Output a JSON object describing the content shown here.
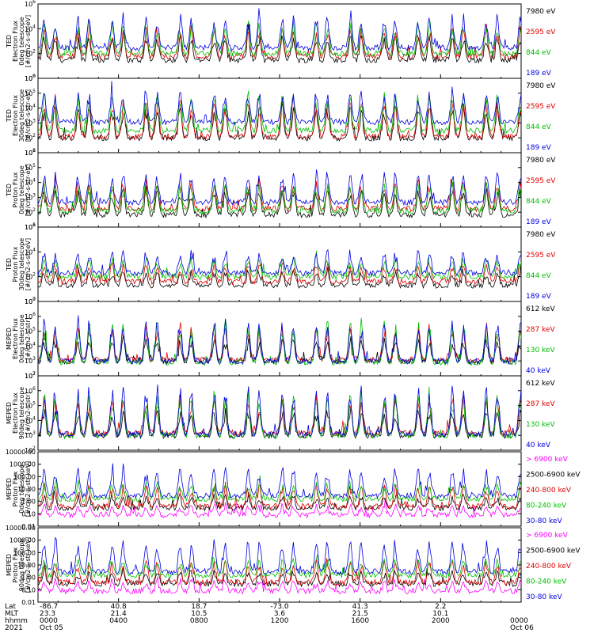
{
  "chart_data": [
    {
      "type": "line",
      "ylabel_lines": [
        "TED",
        "Electron Flux",
        "0deg telescope",
        "[#/cm2-s-str-eV]"
      ],
      "yscale": "log",
      "ylim": [
        1,
        1000000
      ],
      "y_tick_labels": [
        "10^0",
        "10^2",
        "10^4",
        "10^6"
      ],
      "series": [
        {
          "name": "7980 eV",
          "color": "#000000",
          "baseline": 30,
          "peak": 3000
        },
        {
          "name": "2595 eV",
          "color": "#e00000",
          "baseline": 60,
          "peak": 10000
        },
        {
          "name": "844 eV",
          "color": "#00c000",
          "baseline": 100,
          "peak": 30000
        },
        {
          "name": "189 eV",
          "color": "#0000e0",
          "baseline": 300,
          "peak": 100000
        }
      ]
    },
    {
      "type": "line",
      "ylabel_lines": [
        "TED",
        "Electron Flux",
        "30deg telescope",
        "[#/cm2-s-str-eV]"
      ],
      "yscale": "log",
      "ylim": [
        1,
        1000000
      ],
      "y_tick_labels": [
        "10^1",
        "10^2",
        "10^3",
        "10^4",
        "10^5",
        "10^6"
      ],
      "series": [
        {
          "name": "7980 eV",
          "color": "#000000",
          "baseline": 15,
          "peak": 5000
        },
        {
          "name": "2595 eV",
          "color": "#e00000",
          "baseline": 20,
          "peak": 20000
        },
        {
          "name": "844 eV",
          "color": "#00c000",
          "baseline": 60,
          "peak": 50000
        },
        {
          "name": "189 eV",
          "color": "#0000e0",
          "baseline": 300,
          "peak": 100000
        }
      ]
    },
    {
      "type": "line",
      "ylabel_lines": [
        "TED",
        "Proton Flux",
        "0deg telescope",
        "[#/cm2-s-str-eV]"
      ],
      "yscale": "log",
      "ylim": [
        1,
        1000000
      ],
      "y_tick_labels": [
        "10^1",
        "10^2",
        "10^3",
        "10^4",
        "10^5",
        "10^6"
      ],
      "series": [
        {
          "name": "7980 eV",
          "color": "#000000",
          "baseline": 10,
          "peak": 1000
        },
        {
          "name": "2595 eV",
          "color": "#e00000",
          "baseline": 30,
          "peak": 5000
        },
        {
          "name": "844 eV",
          "color": "#00c000",
          "baseline": 20,
          "peak": 3000
        },
        {
          "name": "189 eV",
          "color": "#0000e0",
          "baseline": 100,
          "peak": 30000
        }
      ]
    },
    {
      "type": "line",
      "ylabel_lines": [
        "TED",
        "Proton Flux",
        "30deg telescope",
        "[#/cm2-s-str-eV]"
      ],
      "yscale": "log",
      "ylim": [
        1,
        1000000
      ],
      "y_tick_labels": [
        "10^0",
        "10^2",
        "10^4",
        "10^6"
      ],
      "series": [
        {
          "name": "7980 eV",
          "color": "#000000",
          "baseline": 20,
          "peak": 300
        },
        {
          "name": "2595 eV",
          "color": "#e00000",
          "baseline": 40,
          "peak": 1000
        },
        {
          "name": "844 eV",
          "color": "#00c000",
          "baseline": 100,
          "peak": 3000
        },
        {
          "name": "189 eV",
          "color": "#0000e0",
          "baseline": 200,
          "peak": 10000
        }
      ]
    },
    {
      "type": "line",
      "ylabel_lines": [
        "MEPED",
        "Electron Flux",
        "0deg telescope",
        "[#/cm2-s-str]"
      ],
      "yscale": "log",
      "ylim": [
        10,
        10000000
      ],
      "y_tick_labels": [
        "10^2",
        "10^3",
        "10^4",
        "10^5",
        "10^6",
        "10^7"
      ],
      "series": [
        {
          "name": "612 keV",
          "color": "#000000",
          "baseline": 150,
          "peak": 10000
        },
        {
          "name": "287 keV",
          "color": "#e00000",
          "baseline": 200,
          "peak": 100000
        },
        {
          "name": "130 keV",
          "color": "#00c000",
          "baseline": 120,
          "peak": 200000
        },
        {
          "name": "40 keV",
          "color": "#0000e0",
          "baseline": 150,
          "peak": 300000
        }
      ]
    },
    {
      "type": "line",
      "ylabel_lines": [
        "MEPED",
        "Electron Flux",
        "90deg telescope",
        "[#/cm2-s-str]"
      ],
      "yscale": "log",
      "ylim": [
        10,
        10000000
      ],
      "y_tick_labels": [
        "10^2",
        "10^3",
        "10^4",
        "10^5",
        "10^6",
        "10^7"
      ],
      "series": [
        {
          "name": "612 keV",
          "color": "#000000",
          "baseline": 150,
          "peak": 20000
        },
        {
          "name": "287 keV",
          "color": "#e00000",
          "baseline": 250,
          "peak": 200000
        },
        {
          "name": "130 keV",
          "color": "#00c000",
          "baseline": 150,
          "peak": 300000
        },
        {
          "name": "40 keV",
          "color": "#0000e0",
          "baseline": 200,
          "peak": 1000000
        }
      ]
    },
    {
      "type": "line",
      "ylabel_lines": [
        "MEPED",
        "Proton Flux",
        "0deg telescope",
        "[#/cm2-s-str-keV]"
      ],
      "yscale": "log",
      "ylim": [
        0.01,
        10000
      ],
      "y_tick_labels": [
        "0.01",
        "0.10",
        "1.00",
        "10.00",
        "100.00",
        "1000.00",
        "10000.00"
      ],
      "series": [
        {
          "name": "> 6900 keV",
          "color": "#ff00ff",
          "baseline": 0.08,
          "peak": 0.5
        },
        {
          "name": "2500-6900 keV",
          "color": "#000000",
          "baseline": 0.3,
          "peak": 3
        },
        {
          "name": "240-800 keV",
          "color": "#e00000",
          "baseline": 0.4,
          "peak": 20
        },
        {
          "name": "80-240 keV",
          "color": "#00c000",
          "baseline": 1.5,
          "peak": 30
        },
        {
          "name": "30-80 keV",
          "color": "#0000e0",
          "baseline": 3,
          "peak": 500
        }
      ]
    },
    {
      "type": "line",
      "ylabel_lines": [
        "MEPED",
        "Proton Flux",
        "90deg telescope",
        "[#/cm2-s-str-keV]"
      ],
      "yscale": "log",
      "ylim": [
        0.01,
        10000
      ],
      "y_tick_labels": [
        "0.01",
        "0.10",
        "1.00",
        "10.00",
        "100.00",
        "1000.00",
        "10000.00"
      ],
      "series": [
        {
          "name": "> 6900 keV",
          "color": "#ff00ff",
          "baseline": 0.08,
          "peak": 0.5
        },
        {
          "name": "2500-6900 keV",
          "color": "#000000",
          "baseline": 0.3,
          "peak": 3
        },
        {
          "name": "240-800 keV",
          "color": "#e00000",
          "baseline": 0.4,
          "peak": 20
        },
        {
          "name": "80-240 keV",
          "color": "#00c000",
          "baseline": 1.5,
          "peak": 30
        },
        {
          "name": "30-80 keV",
          "color": "#0000e0",
          "baseline": 3,
          "peak": 800
        }
      ]
    }
  ],
  "x_axis": {
    "row_labels": [
      "Lat",
      "MLT",
      "hhmm",
      "2021"
    ],
    "ticks": [
      {
        "lat": "-86.7",
        "mlt": "23.3",
        "hhmm": "0000",
        "date": "Oct 05"
      },
      {
        "lat": "40.8",
        "mlt": "21.4",
        "hhmm": "0400",
        "date": ""
      },
      {
        "lat": "18.7",
        "mlt": "10.5",
        "hhmm": "0800",
        "date": ""
      },
      {
        "lat": "-73.0",
        "mlt": "3.6",
        "hhmm": "1200",
        "date": ""
      },
      {
        "lat": "41.3",
        "mlt": "21.5",
        "hhmm": "1600",
        "date": ""
      },
      {
        "lat": "2.2",
        "mlt": "10.1",
        "hhmm": "2000",
        "date": ""
      },
      {
        "lat": "",
        "mlt": "",
        "hhmm": "0000",
        "date": "Oct 06"
      }
    ],
    "range_hours": [
      0,
      24
    ]
  }
}
